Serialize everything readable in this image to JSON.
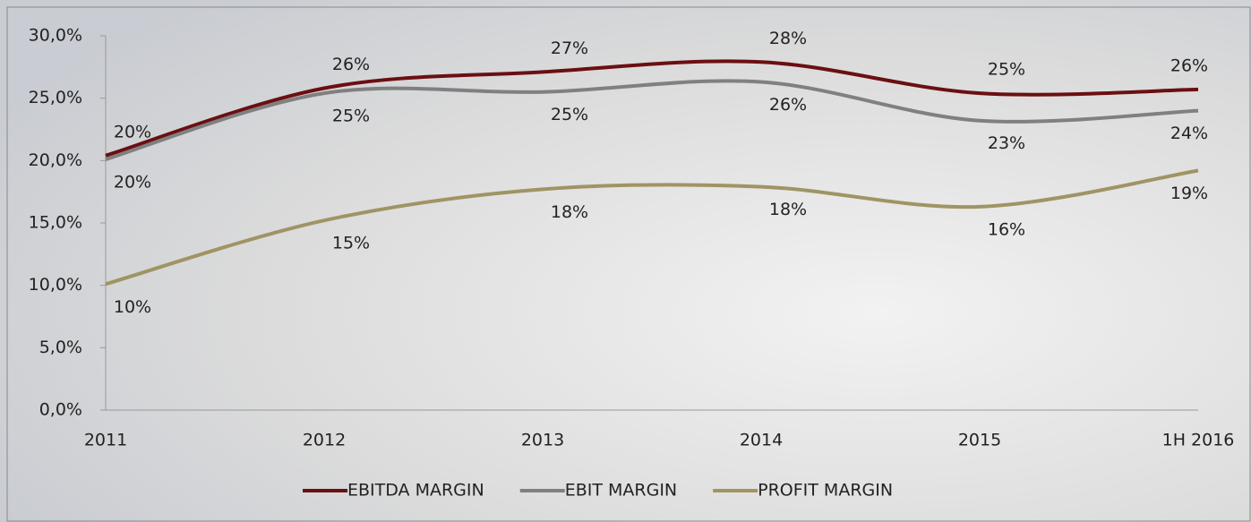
{
  "chart_data": {
    "type": "line",
    "categories": [
      "2011",
      "2012",
      "2013",
      "2014",
      "2015",
      "1H 2016"
    ],
    "series": [
      {
        "name": "EBITDA MARGIN",
        "color": "#6b0f12",
        "values": [
          20.4,
          25.8,
          27.1,
          27.9,
          25.4,
          25.7
        ],
        "value_labels": [
          "20%",
          "26%",
          "27%",
          "28%",
          "25%",
          "26%"
        ]
      },
      {
        "name": "EBIT MARGIN",
        "color": "#808080",
        "values": [
          20.1,
          25.4,
          25.5,
          26.3,
          23.2,
          24.0
        ],
        "value_labels": [
          "20%",
          "25%",
          "25%",
          "26%",
          "23%",
          "24%"
        ]
      },
      {
        "name": "PROFIT MARGIN",
        "color": "#a09464",
        "values": [
          10.1,
          15.2,
          17.7,
          17.9,
          16.3,
          19.2
        ],
        "value_labels": [
          "10%",
          "15%",
          "18%",
          "18%",
          "16%",
          "19%"
        ]
      }
    ],
    "ylim": [
      0,
      30
    ],
    "yticks": [
      {
        "value": 0,
        "label": "0,0%"
      },
      {
        "value": 5,
        "label": "5,0%"
      },
      {
        "value": 10,
        "label": "10,0%"
      },
      {
        "value": 15,
        "label": "15,0%"
      },
      {
        "value": 20,
        "label": "20,0%"
      },
      {
        "value": 25,
        "label": "25,0%"
      },
      {
        "value": 30,
        "label": "30,0%"
      }
    ],
    "legend": "bottom"
  }
}
